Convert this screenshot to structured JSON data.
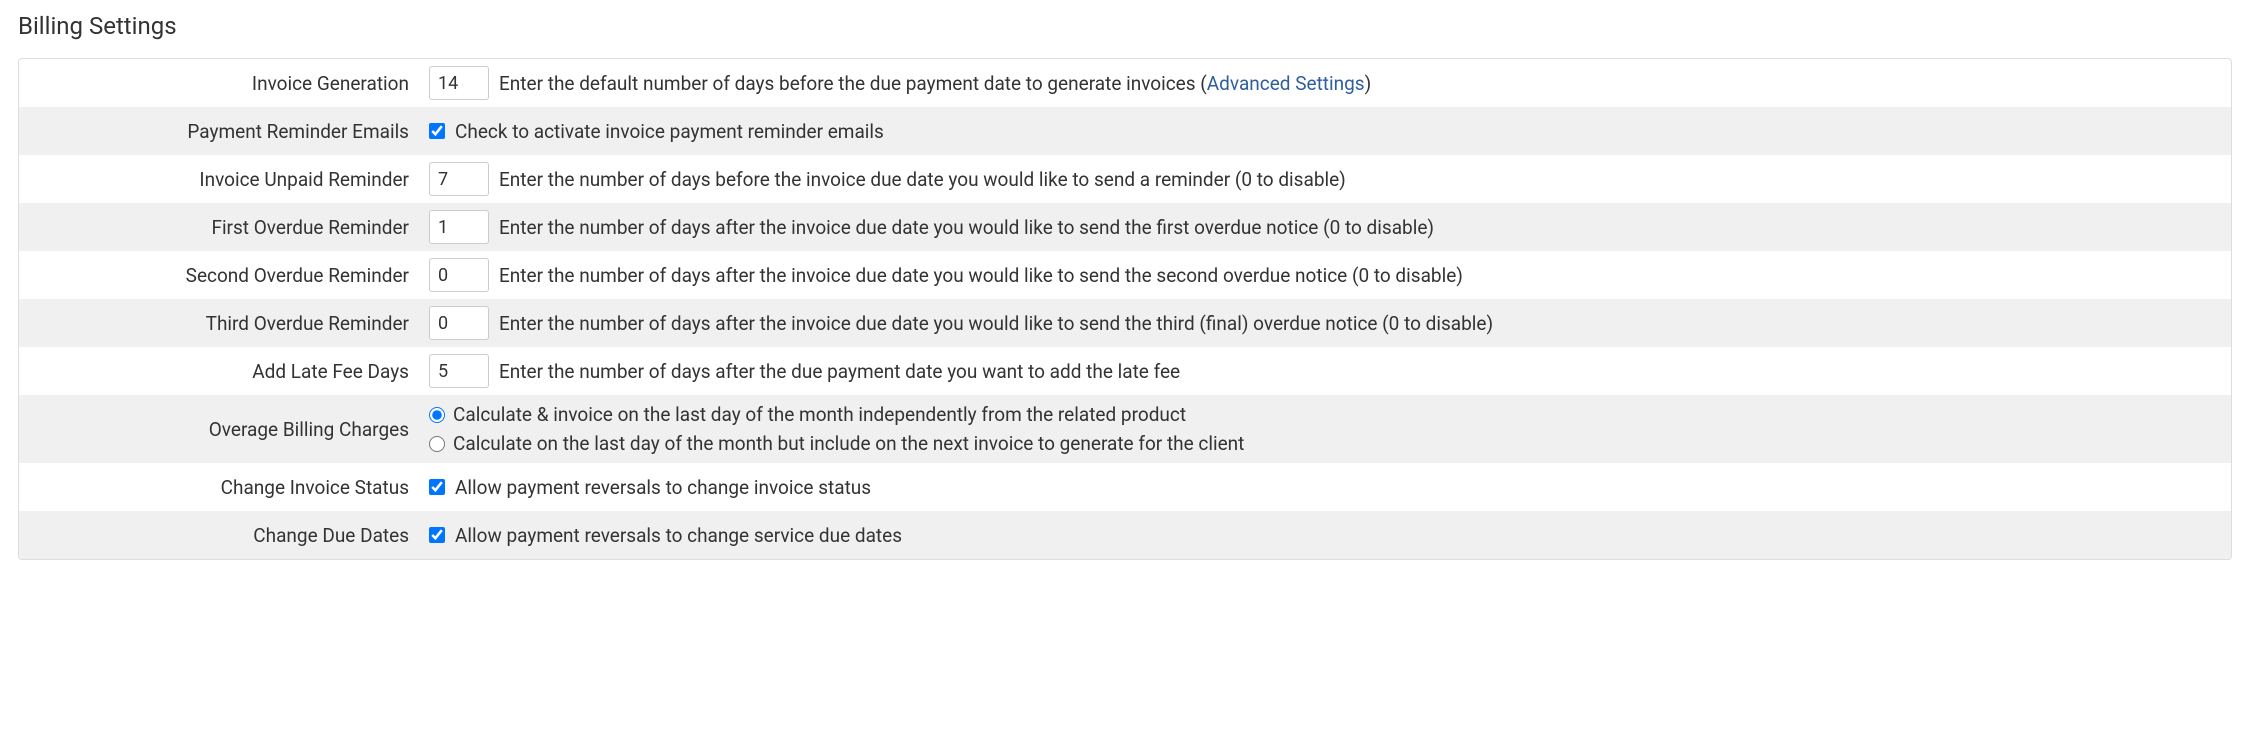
{
  "title": "Billing Settings",
  "link_color": "#2e5ea0",
  "rows": {
    "invoice_generation": {
      "label": "Invoice Generation",
      "value": "14",
      "desc_pre": "Enter the default number of days before the due payment date to generate invoices (",
      "link_text": "Advanced Settings",
      "desc_post": ")"
    },
    "payment_reminder_emails": {
      "label": "Payment Reminder Emails",
      "checked": true,
      "desc": "Check to activate invoice payment reminder emails"
    },
    "invoice_unpaid_reminder": {
      "label": "Invoice Unpaid Reminder",
      "value": "7",
      "desc": "Enter the number of days before the invoice due date you would like to send a reminder (0 to disable)"
    },
    "first_overdue_reminder": {
      "label": "First Overdue Reminder",
      "value": "1",
      "desc": "Enter the number of days after the invoice due date you would like to send the first overdue notice (0 to disable)"
    },
    "second_overdue_reminder": {
      "label": "Second Overdue Reminder",
      "value": "0",
      "desc": "Enter the number of days after the invoice due date you would like to send the second overdue notice (0 to disable)"
    },
    "third_overdue_reminder": {
      "label": "Third Overdue Reminder",
      "value": "0",
      "desc": "Enter the number of days after the invoice due date you would like to send the third (final) overdue notice (0 to disable)"
    },
    "add_late_fee_days": {
      "label": "Add Late Fee Days",
      "value": "5",
      "desc": "Enter the number of days after the due payment date you want to add the late fee"
    },
    "overage_billing_charges": {
      "label": "Overage Billing Charges",
      "option1": "Calculate & invoice on the last day of the month independently from the related product",
      "option2": "Calculate on the last day of the month but include on the next invoice to generate for the client",
      "selected": 0
    },
    "change_invoice_status": {
      "label": "Change Invoice Status",
      "checked": true,
      "desc": "Allow payment reversals to change invoice status"
    },
    "change_due_dates": {
      "label": "Change Due Dates",
      "checked": true,
      "desc": "Allow payment reversals to change service due dates"
    }
  }
}
